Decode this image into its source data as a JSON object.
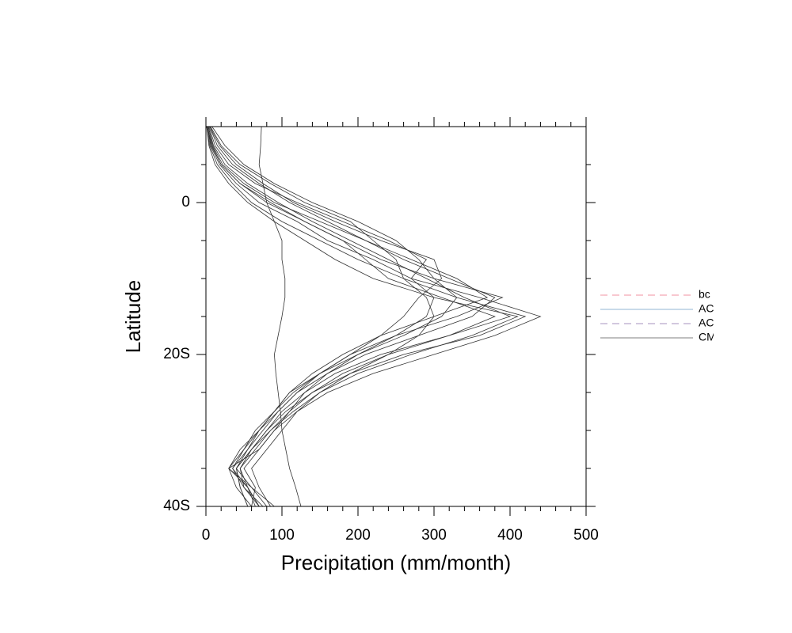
{
  "chart_data": {
    "type": "line",
    "x_label": "Precipitation (mm/month)",
    "y_label": "Latitude",
    "xlim": [
      0,
      500
    ],
    "xticks": [
      0,
      100,
      200,
      300,
      400,
      500
    ],
    "xminorticks": [
      20,
      40,
      60,
      80,
      120,
      140,
      160,
      180,
      220,
      240,
      260,
      280,
      320,
      340,
      360,
      380,
      420,
      440,
      460,
      480
    ],
    "ylim": [
      -40,
      10
    ],
    "yticks": [
      {
        "value": -40,
        "label": "40S"
      },
      {
        "value": -20,
        "label": "20S"
      },
      0
    ],
    "yminorticks": [
      -35,
      -30,
      -25,
      -15,
      -10,
      -5,
      5
    ],
    "y": [
      10,
      7.5,
      5,
      2.5,
      0,
      -2.5,
      -5,
      -7.5,
      -10,
      -12.5,
      -15,
      -17.5,
      -20,
      -22.5,
      -25,
      -27.5,
      -30,
      -32.5,
      -35,
      -37.5,
      -40
    ],
    "line_color": "#333333",
    "series": [
      {
        "values": [
          2,
          8,
          20,
          45,
          80,
          130,
          180,
          230,
          300,
          390,
          330,
          250,
          190,
          150,
          120,
          95,
          70,
          50,
          35,
          55,
          70
        ]
      },
      {
        "values": [
          5,
          15,
          35,
          70,
          110,
          160,
          210,
          260,
          320,
          380,
          350,
          280,
          210,
          160,
          130,
          100,
          80,
          60,
          40,
          60,
          80
        ]
      },
      {
        "values": [
          3,
          10,
          25,
          55,
          95,
          140,
          190,
          240,
          290,
          340,
          400,
          320,
          230,
          170,
          130,
          110,
          90,
          70,
          50,
          65,
          60
        ]
      },
      {
        "values": [
          1,
          5,
          15,
          35,
          60,
          100,
          150,
          200,
          260,
          330,
          420,
          360,
          260,
          190,
          140,
          110,
          85,
          60,
          45,
          50,
          75
        ]
      },
      {
        "values": [
          8,
          25,
          50,
          90,
          140,
          200,
          250,
          280,
          300,
          330,
          310,
          260,
          200,
          150,
          110,
          90,
          70,
          55,
          40,
          45,
          55
        ]
      },
      {
        "values": [
          2,
          6,
          18,
          40,
          70,
          120,
          160,
          220,
          270,
          360,
          440,
          380,
          300,
          220,
          160,
          120,
          90,
          70,
          30,
          60,
          90
        ]
      },
      {
        "values": [
          4,
          12,
          30,
          65,
          120,
          180,
          240,
          290,
          270,
          300,
          290,
          250,
          200,
          160,
          120,
          95,
          75,
          55,
          35,
          50,
          70
        ]
      },
      {
        "values": [
          3,
          9,
          22,
          50,
          90,
          150,
          210,
          270,
          330,
          370,
          300,
          230,
          180,
          140,
          110,
          90,
          70,
          45,
          30,
          55,
          65
        ]
      },
      {
        "values": [
          6,
          20,
          45,
          85,
          130,
          190,
          220,
          250,
          260,
          290,
          300,
          280,
          240,
          190,
          150,
          120,
          100,
          80,
          60,
          70,
          85
        ]
      },
      {
        "values": [
          2,
          7,
          20,
          45,
          85,
          130,
          180,
          210,
          240,
          310,
          380,
          320,
          240,
          180,
          140,
          105,
          80,
          60,
          40,
          45,
          55
        ]
      },
      {
        "values": [
          5,
          18,
          40,
          75,
          115,
          170,
          230,
          300,
          310,
          280,
          260,
          230,
          190,
          150,
          115,
          90,
          65,
          50,
          30,
          40,
          60
        ]
      },
      {
        "values": [
          1,
          4,
          12,
          30,
          55,
          90,
          130,
          170,
          220,
          300,
          410,
          350,
          270,
          200,
          150,
          115,
          85,
          65,
          45,
          55,
          70
        ]
      },
      {
        "values": [
          73,
          72,
          70,
          75,
          80,
          90,
          100,
          100,
          104,
          104,
          100,
          95,
          90,
          92,
          95,
          98,
          100,
          105,
          110,
          118,
          125
        ]
      }
    ],
    "legend": [
      {
        "name": "bc",
        "color": "#f4a8b4",
        "dash": true
      },
      {
        "name": "AC",
        "color": "#a8c4dc",
        "dash": false
      },
      {
        "name": "AC",
        "color": "#b8a8cc",
        "dash": true
      },
      {
        "name": "CM",
        "color": "#999999",
        "dash": false
      }
    ]
  }
}
